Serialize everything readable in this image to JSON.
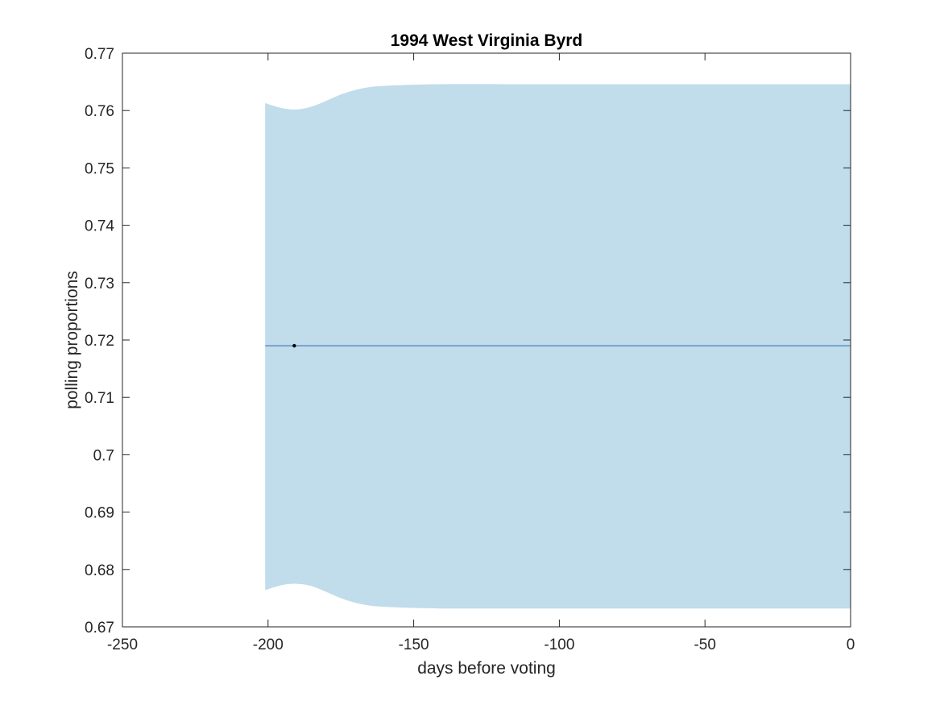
{
  "chart_data": {
    "type": "area",
    "title": "1994 West Virginia Byrd",
    "xlabel": "days before voting",
    "ylabel": "polling proportions",
    "xlim": [
      -250,
      0
    ],
    "ylim": [
      0.67,
      0.77
    ],
    "x_ticks": [
      -250,
      -200,
      -150,
      -100,
      -50,
      0
    ],
    "x_tick_labels": [
      "-250",
      "-200",
      "-150",
      "-100",
      "-50",
      "0"
    ],
    "y_ticks": [
      0.67,
      0.68,
      0.69,
      0.7,
      0.71,
      0.72,
      0.73,
      0.74,
      0.75,
      0.76,
      0.77
    ],
    "y_tick_labels": [
      "0.67",
      "0.68",
      "0.69",
      "0.7",
      "0.71",
      "0.72",
      "0.73",
      "0.74",
      "0.75",
      "0.76",
      "0.77"
    ],
    "grid": false,
    "band": {
      "color": "#c1dcea",
      "x": [
        -201,
        -195,
        -190,
        -185,
        -180,
        -175,
        -170,
        -165,
        -160,
        -150,
        -140,
        -120,
        -100,
        -50,
        0
      ],
      "upper": [
        0.7613,
        0.7604,
        0.7602,
        0.7607,
        0.7617,
        0.7628,
        0.7636,
        0.7641,
        0.7643,
        0.7645,
        0.7646,
        0.7646,
        0.7646,
        0.7646,
        0.7646
      ],
      "lower": [
        0.6764,
        0.6773,
        0.6775,
        0.6771,
        0.6761,
        0.675,
        0.6742,
        0.6737,
        0.6735,
        0.6733,
        0.6732,
        0.6732,
        0.6732,
        0.6732,
        0.6732
      ]
    },
    "series": [
      {
        "type": "line",
        "color": "#4a7fbf",
        "x": [
          -201,
          0
        ],
        "y": [
          0.719,
          0.719
        ]
      }
    ],
    "points": [
      {
        "x": -191,
        "y": 0.719,
        "color": "#000000"
      }
    ]
  }
}
